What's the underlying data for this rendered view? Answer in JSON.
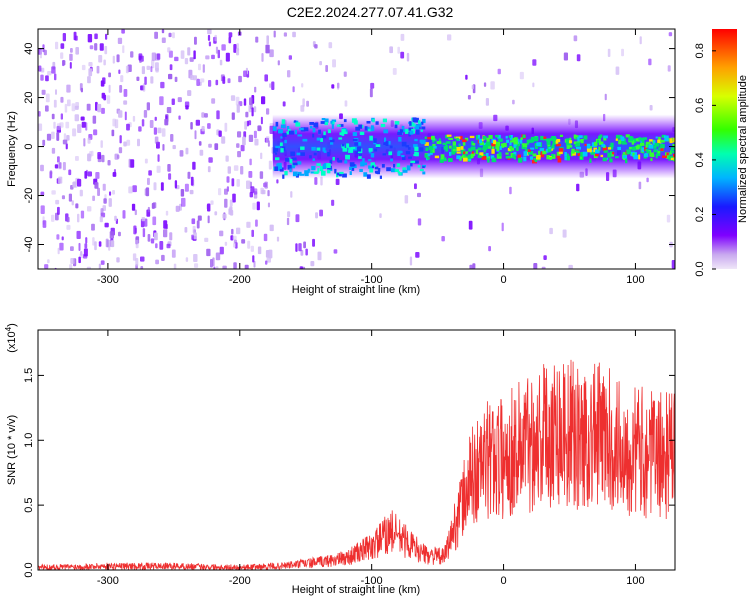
{
  "title": "C2E2.2024.277.07.41.G32",
  "colors": {
    "snr_line": "#ee2f2f",
    "axis": "#000000"
  },
  "chart_data": [
    {
      "type": "heatmap",
      "xlabel": "Height of straight line (km)",
      "ylabel": "Frequency (Hz)",
      "xlim": [
        -353,
        130
      ],
      "ylim": [
        -50,
        48
      ],
      "xticks": [
        -300,
        -200,
        -100,
        0,
        100
      ],
      "yticks": [
        -40,
        -20,
        0,
        20,
        40
      ],
      "colorbar": {
        "label": "Normalized spectral amplitude",
        "range": [
          0.0,
          0.88
        ],
        "ticks": [
          "0.0",
          "0.2",
          "0.4",
          "0.6",
          "0.8"
        ],
        "colormap": "rainbow (violet to red)"
      },
      "signal_band": {
        "center_hz": 0,
        "bandwidth_begins_km": -175,
        "strong_from_km": -60
      }
    },
    {
      "type": "line",
      "xlabel": "Height of straight line (km)",
      "ylabel": "SNR (10 * v/v)",
      "y_scale_label": "(x10",
      "y_scale_exp": "4",
      "y_scale_close": ")",
      "xlim": [
        -353,
        130
      ],
      "ylim": [
        0,
        1.85
      ],
      "xticks": [
        -300,
        -200,
        -100,
        0,
        100
      ],
      "yticks": [
        "0.0",
        "0.5",
        "1.0",
        "1.5"
      ],
      "grid": false,
      "series": [
        {
          "points": [
            [
              -353,
              0.02
            ],
            [
              -300,
              0.03
            ],
            [
              -250,
              0.03
            ],
            [
              -200,
              0.02
            ],
            [
              -170,
              0.03
            ],
            [
              -140,
              0.06
            ],
            [
              -120,
              0.09
            ],
            [
              -100,
              0.18
            ],
            [
              -85,
              0.3
            ],
            [
              -78,
              0.25
            ],
            [
              -60,
              0.12
            ],
            [
              -45,
              0.1
            ],
            [
              -35,
              0.4
            ],
            [
              -25,
              0.7
            ],
            [
              -15,
              0.82
            ],
            [
              -5,
              0.88
            ],
            [
              0,
              0.85
            ],
            [
              10,
              0.95
            ],
            [
              20,
              1.0
            ],
            [
              30,
              1.05
            ],
            [
              40,
              1.1
            ],
            [
              50,
              1.05
            ],
            [
              60,
              1.0
            ],
            [
              70,
              1.05
            ],
            [
              80,
              1.0
            ],
            [
              90,
              0.95
            ],
            [
              100,
              0.92
            ],
            [
              110,
              0.9
            ],
            [
              120,
              0.88
            ],
            [
              130,
              0.9
            ]
          ]
        }
      ]
    }
  ]
}
